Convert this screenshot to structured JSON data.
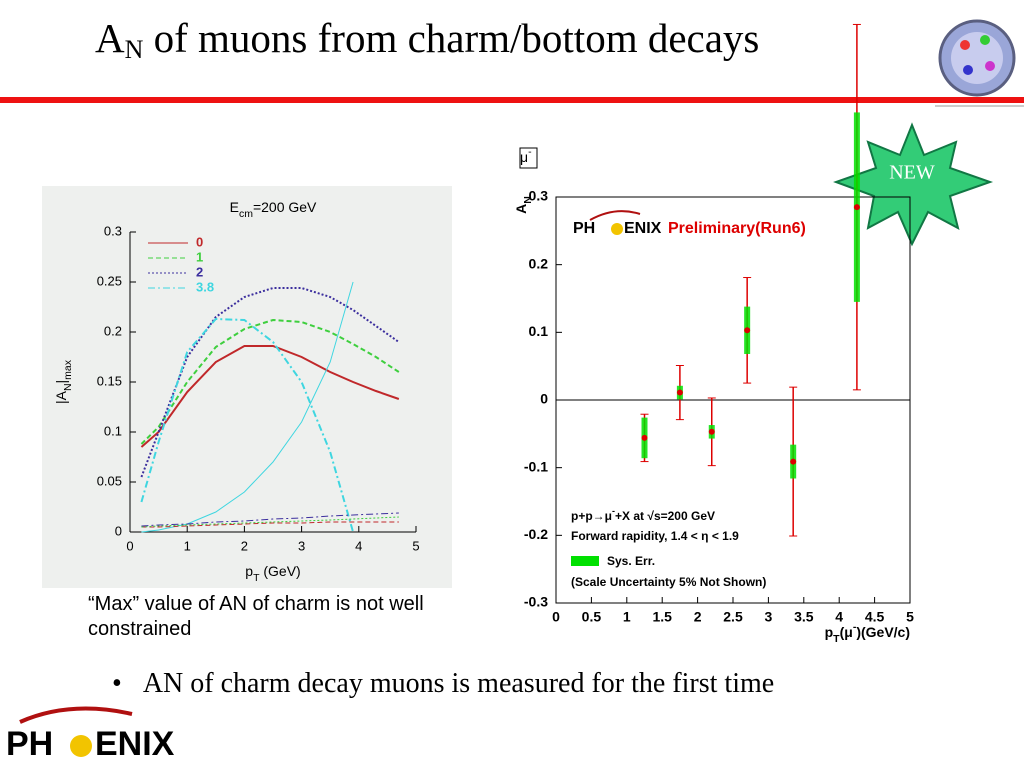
{
  "title": [
    "A",
    "N",
    " of muons from charm/bottom decays"
  ],
  "badge": "NEW",
  "caption": "“Max” value of AN of charm is not well constrained",
  "bullet": "AN of charm decay muons is measured for the first time",
  "logo": [
    "PH",
    "ENIX"
  ],
  "chart_data": [
    {
      "type": "line",
      "title": [
        "E",
        "cm",
        "=200 GeV"
      ],
      "x_label": [
        "p",
        "T",
        " (GeV)"
      ],
      "y_label": [
        "|A",
        "N",
        "|",
        "max"
      ],
      "xlim": [
        0,
        5
      ],
      "xticks": [
        0,
        1,
        2,
        3,
        4,
        5
      ],
      "ylim": [
        0,
        0.3
      ],
      "yticks": [
        0,
        0.05,
        0.1,
        0.15,
        0.2,
        0.25,
        0.3
      ],
      "x": [
        0.2,
        0.5,
        1,
        1.5,
        2,
        2.5,
        3,
        3.5,
        3.9,
        4.3,
        4.7
      ],
      "series": [
        {
          "name": "0",
          "color": "#c0282a",
          "values": [
            0.085,
            0.1,
            0.14,
            0.17,
            0.186,
            0.186,
            0.175,
            0.16,
            0.15,
            0.141,
            0.133
          ]
        },
        {
          "name": "1",
          "color": "#3ecf3e",
          "values": [
            0.088,
            0.105,
            0.15,
            0.185,
            0.203,
            0.212,
            0.21,
            0.2,
            0.188,
            0.175,
            0.16
          ]
        },
        {
          "name": "2",
          "color": "#3c2f9e",
          "values": [
            0.055,
            0.1,
            0.175,
            0.215,
            0.235,
            0.244,
            0.244,
            0.235,
            0.222,
            0.206,
            0.19
          ]
        },
        {
          "name": "3.8",
          "color": "#3fd6e0",
          "values": [
            0.03,
            0.09,
            0.18,
            0.213,
            0.212,
            0.19,
            0.15,
            0.08,
            0,
            null,
            null
          ]
        },
        {
          "color": "#3fd6e0",
          "values": [
            0,
            0.002,
            0.008,
            0.02,
            0.04,
            0.07,
            0.11,
            0.17,
            0.25,
            null,
            null
          ]
        },
        {
          "color": "#c0282a",
          "values": [
            0.005,
            0.005,
            0.006,
            0.007,
            0.008,
            0.009,
            0.009,
            0.01,
            0.01,
            0.01,
            0.01
          ]
        },
        {
          "color": "#3ecf3e",
          "values": [
            0.005,
            0.006,
            0.007,
            0.008,
            0.009,
            0.01,
            0.011,
            0.012,
            0.013,
            0.014,
            0.015
          ]
        },
        {
          "color": "#3c2f9e",
          "values": [
            0.006,
            0.007,
            0.008,
            0.01,
            0.011,
            0.013,
            0.014,
            0.016,
            0.017,
            0.018,
            0.019
          ]
        }
      ]
    },
    {
      "type": "scatter",
      "marker": [
        "μ",
        "-"
      ],
      "logo": [
        "PH",
        "ENIX"
      ],
      "subtitle": "Preliminary(Run6)",
      "x_label": [
        "p",
        "T",
        "(μ",
        "-",
        ")(GeV/c)"
      ],
      "y_label": [
        "A",
        "N"
      ],
      "xlim": [
        0,
        5
      ],
      "xticks": [
        0,
        0.5,
        1,
        1.5,
        2,
        2.5,
        3,
        3.5,
        4,
        4.5,
        5
      ],
      "ylim": [
        -0.3,
        0.3
      ],
      "yticks": [
        -0.3,
        -0.2,
        -0.1,
        0,
        0.1,
        0.2,
        0.3
      ],
      "x": [
        1.25,
        1.75,
        2.2,
        2.7,
        3.35,
        4.25
      ],
      "y": [
        -0.056,
        0.011,
        -0.047,
        0.103,
        -0.091,
        0.285
      ],
      "stat_err": [
        0.035,
        0.04,
        0.05,
        0.078,
        0.11,
        0.27
      ],
      "sys_err": [
        0.03,
        0.01,
        0.01,
        0.035,
        0.025,
        0.14
      ],
      "color": "#dd0000",
      "sys_color": "#00e000",
      "sys_label": "Sys. Err.",
      "annotations": [
        [
          "p+p→μ",
          "-",
          "+X at √s=200 GeV"
        ],
        [
          "Forward rapidity, 1.4 < η < 1.9"
        ],
        [
          "(Scale Uncertainty 5%  Not Shown)"
        ]
      ]
    }
  ]
}
